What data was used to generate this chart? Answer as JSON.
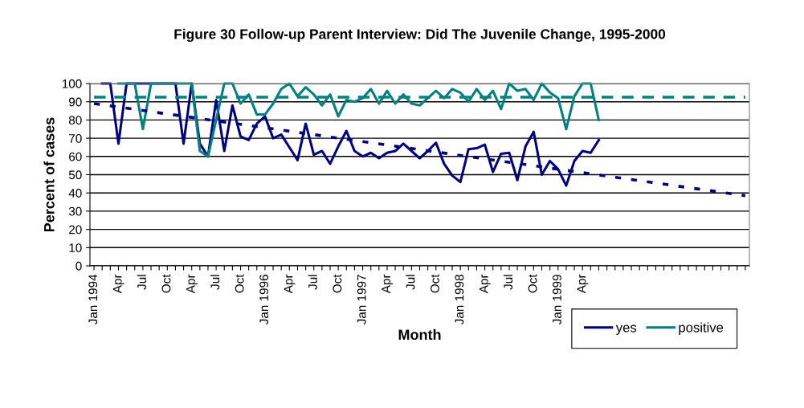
{
  "chart_data": {
    "type": "line",
    "title": "Figure 30 Follow-up Parent Interview: Did The Juvenile Change, 1995-2000",
    "xlabel": "Month",
    "ylabel": "Percent of cases",
    "categories": [
      "Jan 1994",
      null,
      null,
      "Apr",
      null,
      null,
      "Jul",
      null,
      null,
      "Oct",
      null,
      null,
      "Apr",
      null,
      null,
      "Jul",
      null,
      null,
      "Oct",
      null,
      null,
      "Jan 1996",
      null,
      null,
      "Apr",
      null,
      null,
      "Jul",
      null,
      null,
      "Oct",
      null,
      null,
      "Jan 1997",
      null,
      null,
      "Apr",
      null,
      null,
      "Jul",
      null,
      null,
      "Oct",
      null,
      null,
      "Jan 1998",
      null,
      null,
      "Apr",
      null,
      null,
      "Jul",
      null,
      null,
      "Oct",
      null,
      null,
      "Jan 1999",
      null,
      null,
      "Apr",
      null,
      null,
      null,
      null,
      null,
      null,
      null,
      null,
      null,
      null,
      null,
      null,
      null,
      null,
      null,
      null,
      null,
      null,
      null,
      null
    ],
    "series": [
      {
        "name": "yes",
        "color": "#000080",
        "line_style": "solid",
        "values": [
          null,
          100,
          100,
          67,
          100,
          100,
          100,
          100,
          100,
          100,
          100,
          67,
          100,
          67,
          60,
          91,
          63,
          88,
          71,
          69,
          78,
          82,
          70,
          72,
          65,
          58,
          78,
          61,
          63,
          56,
          65.5,
          74,
          63,
          60,
          62,
          59,
          62,
          63,
          67,
          63,
          59,
          63,
          67.5,
          56,
          49.5,
          46,
          64,
          64.5,
          66.5,
          51.5,
          61.5,
          62,
          47,
          65.5,
          73.5,
          50,
          57.5,
          53,
          44,
          57.5,
          63,
          62,
          69,
          null,
          null,
          null,
          null,
          null,
          null,
          null,
          null,
          null,
          null,
          null,
          null,
          null,
          null,
          null,
          null,
          null,
          null
        ]
      },
      {
        "name": "positive",
        "color": "#008080",
        "line_style": "solid",
        "values": [
          null,
          null,
          null,
          100,
          100,
          100,
          75,
          100,
          100,
          100,
          100,
          100,
          100,
          63,
          60,
          80,
          100,
          100,
          89,
          94,
          83,
          83,
          89,
          97,
          100,
          93,
          98,
          94,
          88,
          94,
          82,
          91,
          90,
          92,
          97,
          89,
          96,
          89,
          94,
          89,
          88,
          92,
          96,
          92,
          97,
          95,
          90,
          97,
          91,
          96,
          86,
          100,
          96,
          97,
          91,
          100,
          95,
          92,
          75,
          93,
          100,
          100,
          80,
          null,
          null,
          null,
          null,
          null,
          null,
          null,
          null,
          null,
          null,
          null,
          null,
          null,
          null,
          null,
          null,
          null,
          null
        ]
      },
      {
        "color": "#000080",
        "line_style": "dotted",
        "values": [
          89,
          null,
          null,
          null,
          null,
          null,
          null,
          null,
          null,
          null,
          null,
          null,
          null,
          null,
          null,
          null,
          null,
          null,
          null,
          null,
          null,
          null,
          null,
          null,
          null,
          null,
          null,
          null,
          null,
          null,
          null,
          null,
          null,
          null,
          null,
          null,
          null,
          null,
          null,
          null,
          null,
          null,
          null,
          null,
          null,
          null,
          null,
          null,
          null,
          null,
          null,
          null,
          null,
          null,
          null,
          null,
          null,
          null,
          null,
          null,
          null,
          null,
          null,
          null,
          null,
          null,
          null,
          null,
          null,
          null,
          null,
          null,
          null,
          null,
          null,
          null,
          null,
          null,
          null,
          null,
          38.5
        ]
      },
      {
        "color": "#008080",
        "line_style": "dashed",
        "values": [
          92.5,
          null,
          null,
          null,
          null,
          null,
          null,
          null,
          null,
          null,
          null,
          null,
          null,
          null,
          null,
          null,
          null,
          null,
          null,
          null,
          null,
          null,
          null,
          null,
          null,
          null,
          null,
          null,
          null,
          null,
          null,
          null,
          null,
          null,
          null,
          null,
          null,
          null,
          null,
          null,
          null,
          null,
          null,
          null,
          null,
          null,
          null,
          null,
          null,
          null,
          null,
          null,
          null,
          null,
          null,
          null,
          null,
          null,
          null,
          null,
          null,
          null,
          null,
          null,
          null,
          null,
          null,
          null,
          null,
          null,
          null,
          null,
          null,
          null,
          null,
          null,
          null,
          null,
          null,
          null,
          92.5
        ]
      }
    ],
    "ylim": [
      0,
      100
    ],
    "yticks": [
      0,
      10,
      20,
      30,
      40,
      50,
      60,
      70,
      80,
      90,
      100
    ],
    "grid": "y",
    "legend": "bottom right",
    "marker": "none"
  }
}
